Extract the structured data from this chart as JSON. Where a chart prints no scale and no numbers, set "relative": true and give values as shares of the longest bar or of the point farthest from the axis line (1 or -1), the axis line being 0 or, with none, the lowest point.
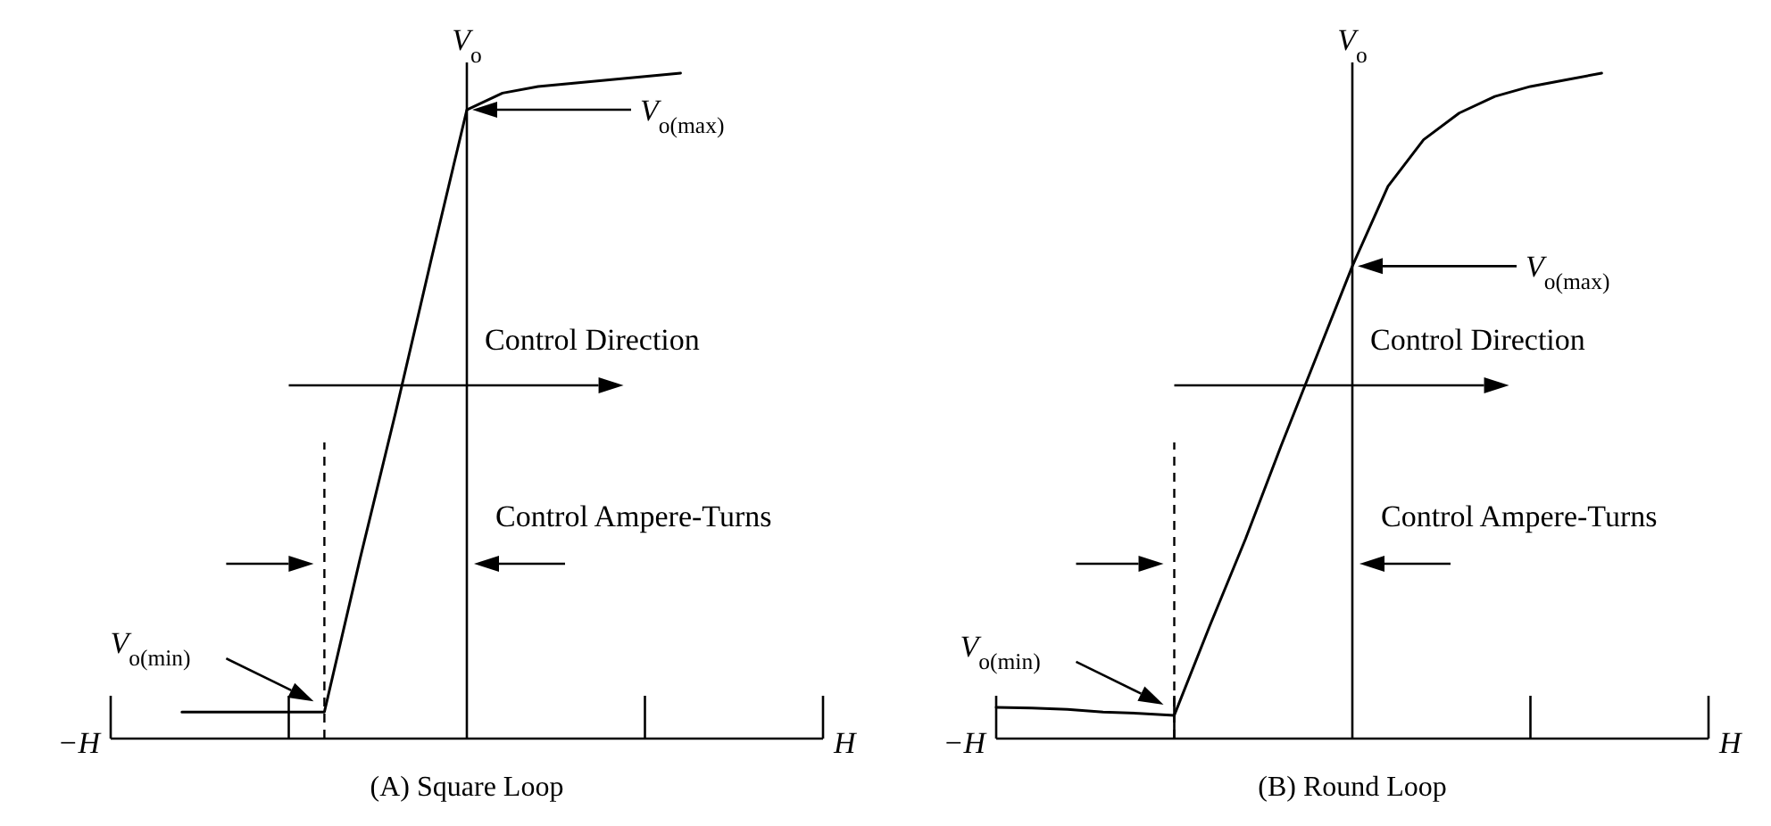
{
  "chart_data": [
    {
      "type": "line",
      "title": "(A) Square Loop",
      "ylabel": "V$_{o}$",
      "relative": true,
      "categories": [
        null,
        null,
        null,
        null,
        null,
        null,
        null,
        null,
        null,
        null,
        null,
        null,
        null,
        null,
        null,
        null,
        null,
        null,
        null,
        null,
        null
      ],
      "series": [
        {
          "color": "#000000",
          "values": [
            null,
            null,
            0.04,
            0.04,
            0.04,
            0.04,
            0.04,
            0.27,
            0.49,
            0.72,
            0.945,
            0.97,
            0.98,
            0.985,
            0.99,
            0.995,
            1,
            null,
            null,
            null,
            null
          ]
        }
      ],
      "annotations": [
        "Control Direction",
        "Control Ampere-Turns",
        "V$_{o(max)}$",
        "V$_{o(min)}$",
        "−H",
        "H"
      ]
    },
    {
      "type": "line",
      "title": "(B) Round Loop",
      "ylabel": "V$_{o}$",
      "relative": true,
      "categories": [
        null,
        null,
        null,
        null,
        null,
        null,
        null,
        null,
        null,
        null,
        null,
        null,
        null,
        null,
        null,
        null,
        null,
        null,
        null,
        null,
        null
      ],
      "series": [
        {
          "color": "#000000",
          "values": [
            0.047,
            0.046,
            0.044,
            0.04,
            0.038,
            0.035,
            0.17,
            0.3,
            0.44,
            0.575,
            0.71,
            0.83,
            0.9,
            0.94,
            0.965,
            0.98,
            0.99,
            1,
            null,
            null,
            null
          ]
        }
      ],
      "annotations": [
        "Control Direction",
        "Control Ampere-Turns",
        "V$_{o(max)}$",
        "V$_{o(min)}$",
        "−H",
        "H"
      ]
    }
  ]
}
